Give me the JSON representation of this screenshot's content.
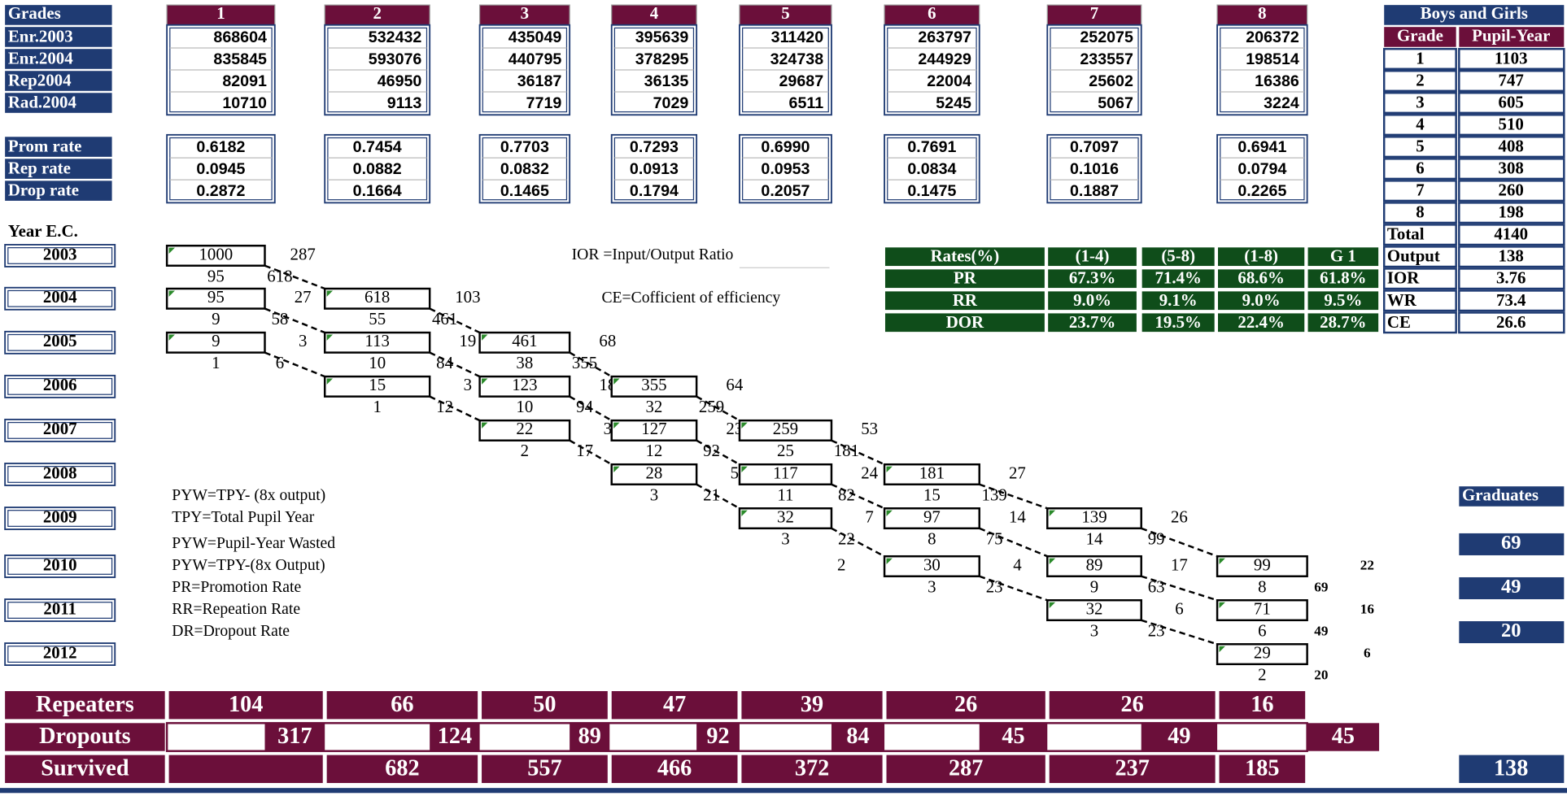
{
  "table": {
    "header_label": "Grades",
    "grades": [
      "1",
      "2",
      "3",
      "4",
      "5",
      "6",
      "7",
      "8"
    ],
    "rows": [
      {
        "label": "Enr.2003",
        "values": [
          "868604",
          "532432",
          "435049",
          "395639",
          "311420",
          "263797",
          "252075",
          "206372"
        ]
      },
      {
        "label": "Enr.2004",
        "values": [
          "835845",
          "593076",
          "440795",
          "378295",
          "324738",
          "244929",
          "233557",
          "198514"
        ]
      },
      {
        "label": "Rep2004",
        "values": [
          "82091",
          "46950",
          "36187",
          "36135",
          "29687",
          "22004",
          "25602",
          "16386"
        ]
      },
      {
        "label": "Rad.2004",
        "values": [
          "10710",
          "9113",
          "7719",
          "7029",
          "6511",
          "5245",
          "5067",
          "3224"
        ]
      }
    ],
    "rates": [
      {
        "label": "Prom rate",
        "values": [
          "0.6182",
          "0.7454",
          "0.7703",
          "0.7293",
          "0.6990",
          "0.7691",
          "0.7097",
          "0.6941"
        ]
      },
      {
        "label": "Rep rate",
        "values": [
          "0.0945",
          "0.0882",
          "0.0832",
          "0.0913",
          "0.0953",
          "0.0834",
          "0.1016",
          "0.0794"
        ]
      },
      {
        "label": "Drop rate",
        "values": [
          "0.2872",
          "0.1664",
          "0.1465",
          "0.1794",
          "0.2057",
          "0.1475",
          "0.1887",
          "0.2265"
        ]
      }
    ]
  },
  "pupil_year": {
    "title": "Boys and Girls",
    "headers": [
      "Grade",
      "Pupil-Year"
    ],
    "rows": [
      [
        "1",
        "1103"
      ],
      [
        "2",
        "747"
      ],
      [
        "3",
        "605"
      ],
      [
        "4",
        "510"
      ],
      [
        "5",
        "408"
      ],
      [
        "6",
        "308"
      ],
      [
        "7",
        "260"
      ],
      [
        "8",
        "198"
      ],
      [
        "Total",
        "4140"
      ],
      [
        "Output",
        "138"
      ],
      [
        "IOR",
        "3.76"
      ],
      [
        "WR",
        "73.4"
      ],
      [
        "CE",
        "26.6"
      ]
    ]
  },
  "rates": {
    "headers": [
      "Rates(%)",
      "(1-4)",
      "(5-8)",
      "(1-8)",
      "G 1"
    ],
    "rows": [
      [
        "PR",
        "67.3%",
        "71.4%",
        "68.6%",
        "61.8%"
      ],
      [
        "RR",
        "9.0%",
        "9.1%",
        "9.0%",
        "9.5%"
      ],
      [
        "DOR",
        "23.7%",
        "19.5%",
        "22.4%",
        "28.7%"
      ]
    ]
  },
  "years": {
    "label": "Year E.C.",
    "values": [
      "2003",
      "2004",
      "2005",
      "2006",
      "2007",
      "2008",
      "2009",
      "2010",
      "2011",
      "2012"
    ]
  },
  "flow": [
    [
      {
        "enrol": "1000",
        "drop": "287",
        "repeat": "95",
        "promote": "618"
      },
      null,
      null,
      null,
      null,
      null,
      null,
      null
    ],
    [
      {
        "enrol": "95",
        "drop": "27",
        "repeat": "9",
        "promote": "58"
      },
      {
        "enrol": "618",
        "drop": "103",
        "repeat": "55",
        "promote": "461"
      },
      null,
      null,
      null,
      null,
      null,
      null
    ],
    [
      {
        "enrol": "9",
        "drop": "3",
        "repeat": "1",
        "promote": "6"
      },
      {
        "enrol": "113",
        "drop": "19",
        "repeat": "10",
        "promote": "84"
      },
      {
        "enrol": "461",
        "drop": "68",
        "repeat": "38",
        "promote": "355"
      },
      null,
      null,
      null,
      null,
      null
    ],
    [
      null,
      {
        "enrol": "15",
        "drop": "3",
        "repeat": "1",
        "promote": "12"
      },
      {
        "enrol": "123",
        "drop": "18",
        "repeat": "10",
        "promote": "94"
      },
      {
        "enrol": "355",
        "drop": "64",
        "repeat": "32",
        "promote": "259"
      },
      null,
      null,
      null,
      null
    ],
    [
      null,
      null,
      {
        "enrol": "22",
        "drop": "3",
        "repeat": "2",
        "promote": "17"
      },
      {
        "enrol": "127",
        "drop": "23",
        "repeat": "12",
        "promote": "92"
      },
      {
        "enrol": "259",
        "drop": "53",
        "repeat": "25",
        "promote": "181"
      },
      null,
      null,
      null
    ],
    [
      null,
      null,
      null,
      {
        "enrol": "28",
        "drop": "5",
        "repeat": "3",
        "promote": "21"
      },
      {
        "enrol": "117",
        "drop": "24",
        "repeat": "11",
        "promote": "82"
      },
      {
        "enrol": "181",
        "drop": "27",
        "repeat": "15",
        "promote": "139"
      },
      null,
      null
    ],
    [
      null,
      null,
      null,
      null,
      {
        "enrol": "32",
        "drop": "7",
        "repeat": "3",
        "promote": "22"
      },
      {
        "enrol": "97",
        "drop": "14",
        "repeat": "8",
        "promote": "75"
      },
      {
        "enrol": "139",
        "drop": "26",
        "repeat": "14",
        "promote": "99"
      },
      null
    ],
    [
      null,
      null,
      null,
      null,
      {
        "drop": "2"
      },
      {
        "enrol": "30",
        "drop": "4",
        "repeat": "3",
        "promote": "23"
      },
      {
        "enrol": "89",
        "drop": "17",
        "repeat": "9",
        "promote": "63"
      },
      {
        "enrol": "99",
        "drop": "22",
        "repeat": "8",
        "promote": "69"
      }
    ],
    [
      null,
      null,
      null,
      null,
      null,
      null,
      {
        "enrol": "32",
        "drop": "6",
        "repeat": "3",
        "promote": "23"
      },
      {
        "enrol": "71",
        "drop": "16",
        "repeat": "6",
        "promote": "49"
      }
    ],
    [
      null,
      null,
      null,
      null,
      null,
      null,
      null,
      {
        "enrol": "29",
        "drop": "6",
        "repeat": "2",
        "promote": "20"
      }
    ]
  ],
  "notes": [
    "PYW=TPY- (8x output)",
    "TPY=Total Pupil Year",
    "PYW=Pupil-Year Wasted",
    "PYW=TPY-(8x Output)",
    "PR=Promotion Rate",
    "RR=Repeation Rate",
    "DR=Dropout Rate"
  ],
  "ior_note": "IOR =Input/Output Ratio",
  "ce_note": "CE=Cofficient of efficiency",
  "summary": {
    "repeaters": {
      "label": "Repeaters",
      "values": [
        "104",
        "66",
        "50",
        "47",
        "39",
        "26",
        "26",
        "16"
      ]
    },
    "dropouts": {
      "label": "Dropouts",
      "values": [
        "317",
        "124",
        "89",
        "92",
        "84",
        "45",
        "49",
        "45"
      ]
    },
    "survived": {
      "label": "Survived",
      "values": [
        null,
        "682",
        "557",
        "466",
        "372",
        "287",
        "237",
        "185"
      ],
      "output": "138"
    }
  },
  "graduates": {
    "label": "Graduates",
    "values": [
      "69",
      "49",
      "20"
    ]
  }
}
